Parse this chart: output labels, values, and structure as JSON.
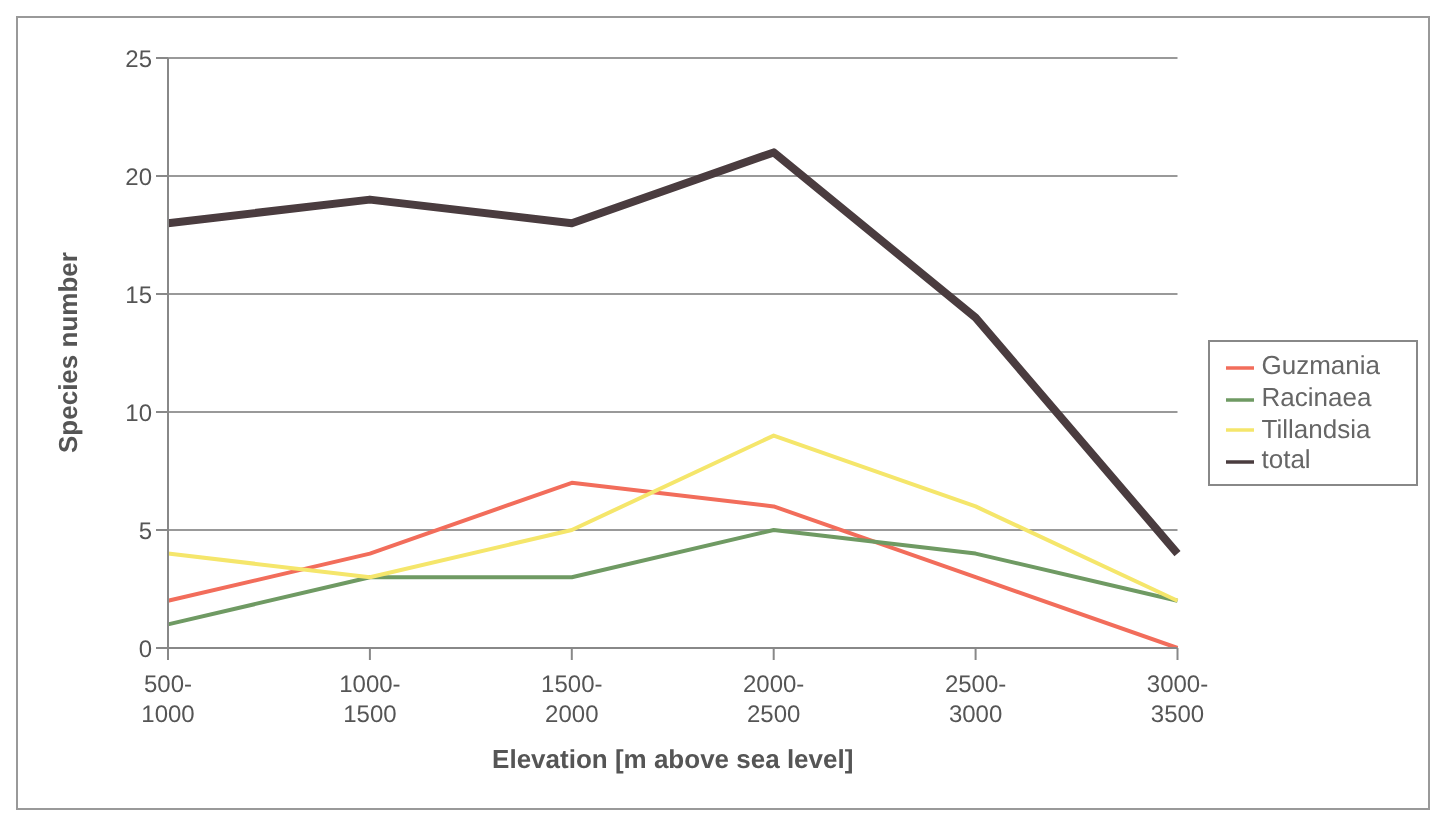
{
  "chart_data": {
    "type": "line",
    "xlabel": "Elevation [m above sea level]",
    "ylabel": "Species number",
    "categories": [
      "500-\n1000",
      "1000-\n1500",
      "1500-\n2000",
      "2000-\n2500",
      "2500-\n3000",
      "3000-\n3500"
    ],
    "series": [
      {
        "name": "total",
        "color": "#4a3c3f",
        "values": [
          18,
          19,
          18,
          21,
          14,
          4
        ]
      },
      {
        "name": "Guzmania",
        "color": "#f26d5b",
        "values": [
          2,
          4,
          7,
          6,
          3,
          0
        ]
      },
      {
        "name": "Racinaea",
        "color": "#6f9a63",
        "values": [
          1,
          3,
          3,
          5,
          4,
          2
        ]
      },
      {
        "name": "Tillandsia",
        "color": "#f5e66b",
        "values": [
          4,
          3,
          5,
          9,
          6,
          2
        ]
      }
    ],
    "ylim": [
      0,
      25
    ],
    "yticks": [
      0,
      5,
      10,
      15,
      20,
      25
    ],
    "grid": "y",
    "legend": "right",
    "marker": "none",
    "line_style": "solid"
  }
}
